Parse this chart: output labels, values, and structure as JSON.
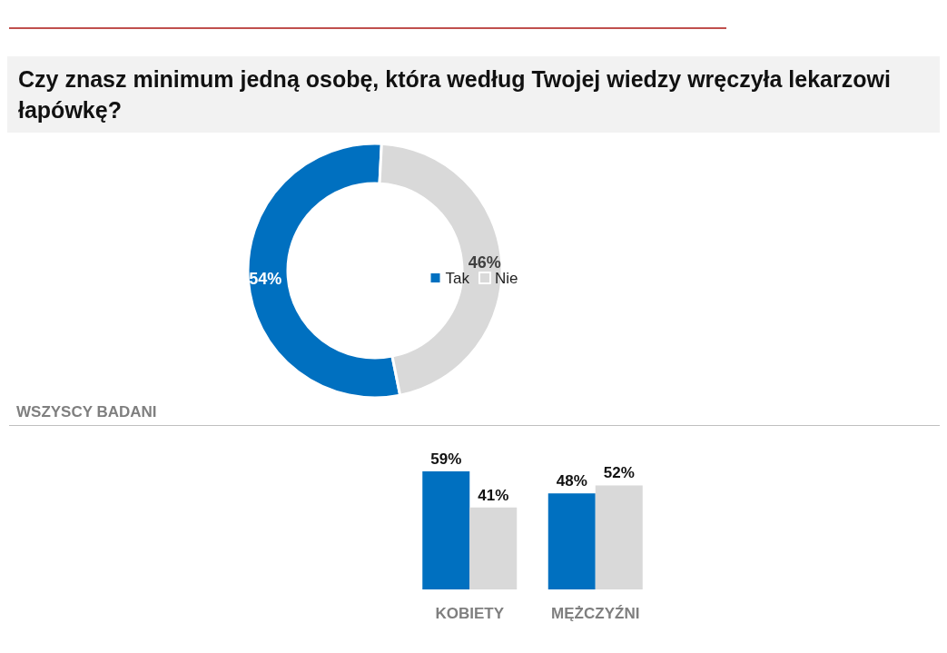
{
  "chart_data": [
    {
      "type": "donut",
      "title": "Czy znasz minimum jedną osobę, która według Twojej wiedzy wręczyła lekarzowi łapówkę?",
      "categories": [
        "Tak",
        "Nie"
      ],
      "values": [
        54,
        46
      ],
      "colors": [
        "#0070c0",
        "#d9d9d9"
      ],
      "value_labels": [
        "54%",
        "46%"
      ],
      "legend": "center",
      "annotations": [
        "WSZYSCY BADANI"
      ]
    },
    {
      "type": "bar",
      "categories": [
        "KOBIETY",
        "MĘŻCZYŹNI"
      ],
      "series": [
        {
          "color": "#0070c0",
          "values": [
            59,
            48
          ],
          "value_labels": [
            "59%",
            "48%"
          ]
        },
        {
          "color": "#d9d9d9",
          "values": [
            41,
            52
          ],
          "value_labels": [
            "41%",
            "52%"
          ]
        }
      ],
      "legend": false
    }
  ]
}
